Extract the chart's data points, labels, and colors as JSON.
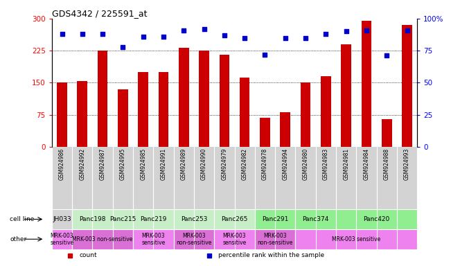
{
  "title": "GDS4342 / 225591_at",
  "gsm_labels": [
    "GSM924986",
    "GSM924992",
    "GSM924987",
    "GSM924995",
    "GSM924985",
    "GSM924991",
    "GSM924989",
    "GSM924990",
    "GSM924979",
    "GSM924982",
    "GSM924978",
    "GSM924994",
    "GSM924980",
    "GSM924983",
    "GSM924981",
    "GSM924984",
    "GSM924988",
    "GSM924993"
  ],
  "bar_values": [
    150,
    153,
    225,
    135,
    175,
    175,
    232,
    225,
    215,
    162,
    68,
    80,
    150,
    165,
    240,
    295,
    65,
    285
  ],
  "dot_values": [
    88,
    88,
    88,
    78,
    86,
    86,
    91,
    92,
    87,
    85,
    72,
    85,
    85,
    88,
    90,
    91,
    71,
    91
  ],
  "ylim_left": [
    0,
    300
  ],
  "ylim_right": [
    0,
    100
  ],
  "yticks_left": [
    0,
    75,
    150,
    225,
    300
  ],
  "yticks_right": [
    0,
    25,
    50,
    75,
    100
  ],
  "bar_color": "#cc0000",
  "dot_color": "#0000cc",
  "cell_line_groups": [
    {
      "label": "JH033",
      "start": 0,
      "end": 1,
      "color": "#d3d3d3"
    },
    {
      "label": "Panc198",
      "start": 1,
      "end": 3,
      "color": "#c8eec8"
    },
    {
      "label": "Panc215",
      "start": 3,
      "end": 4,
      "color": "#c8eec8"
    },
    {
      "label": "Panc219",
      "start": 4,
      "end": 6,
      "color": "#c8eec8"
    },
    {
      "label": "Panc253",
      "start": 6,
      "end": 8,
      "color": "#c8eec8"
    },
    {
      "label": "Panc265",
      "start": 8,
      "end": 10,
      "color": "#c8eec8"
    },
    {
      "label": "Panc291",
      "start": 10,
      "end": 12,
      "color": "#90ee90"
    },
    {
      "label": "Panc374",
      "start": 12,
      "end": 14,
      "color": "#90ee90"
    },
    {
      "label": "Panc420",
      "start": 14,
      "end": 18,
      "color": "#90ee90"
    }
  ],
  "other_groups": [
    {
      "label": "MRK-003\nsensitive",
      "start": 0,
      "end": 1,
      "color": "#ee82ee"
    },
    {
      "label": "MRK-003 non-sensitive",
      "start": 1,
      "end": 4,
      "color": "#da70d6"
    },
    {
      "label": "MRK-003\nsensitive",
      "start": 4,
      "end": 6,
      "color": "#ee82ee"
    },
    {
      "label": "MRK-003\nnon-sensitive",
      "start": 6,
      "end": 8,
      "color": "#da70d6"
    },
    {
      "label": "MRK-003\nsensitive",
      "start": 8,
      "end": 10,
      "color": "#ee82ee"
    },
    {
      "label": "MRK-003\nnon-sensitive",
      "start": 10,
      "end": 12,
      "color": "#da70d6"
    },
    {
      "label": "MRK-003 sensitive",
      "start": 12,
      "end": 18,
      "color": "#ee82ee"
    }
  ],
  "legend_items": [
    {
      "label": "count",
      "color": "#cc0000"
    },
    {
      "label": "percentile rank within the sample",
      "color": "#0000cc"
    }
  ],
  "xtick_bg_color": "#d3d3d3"
}
